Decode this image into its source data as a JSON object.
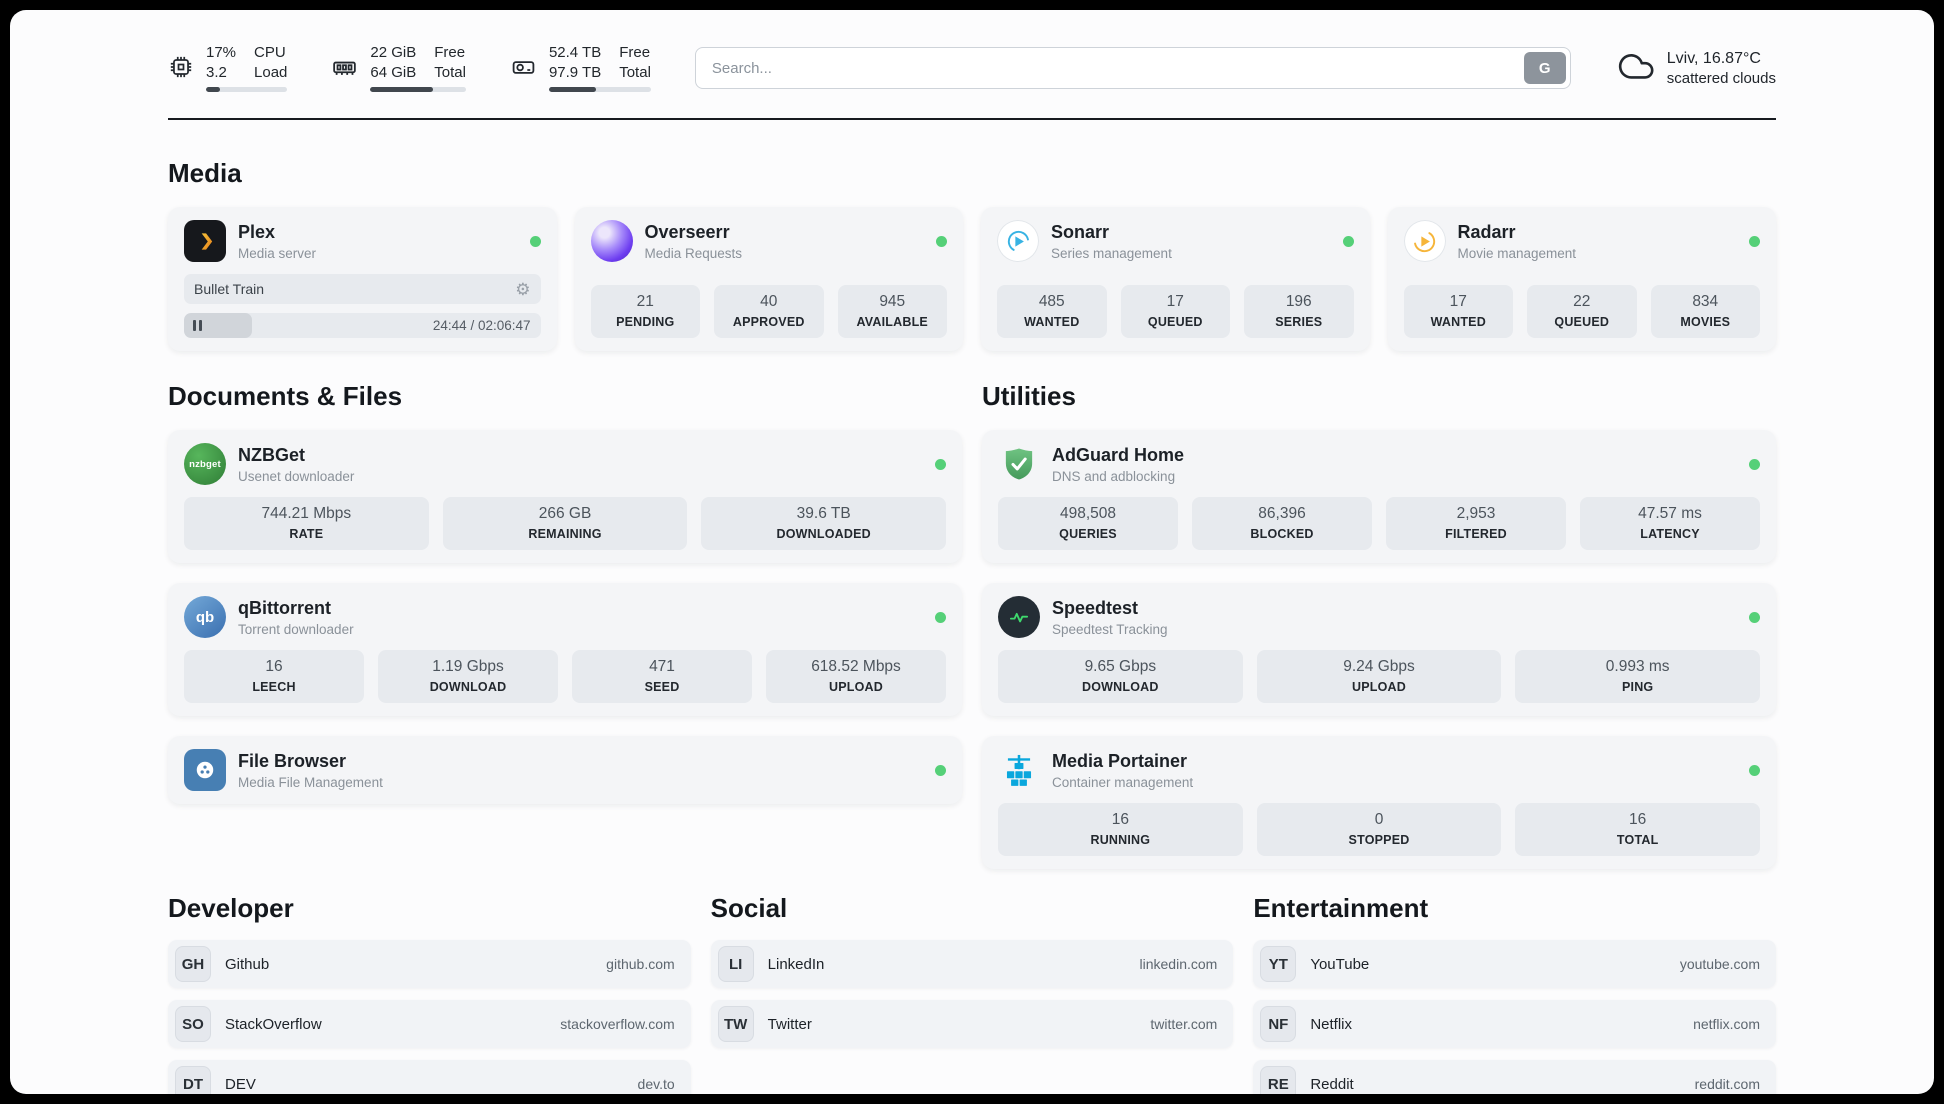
{
  "colors": {
    "status_online": "#55d078",
    "usage_bar_fill": "#41474e",
    "plex_accent": "#eba21a",
    "sonarr_accent": "#38b3e3",
    "radarr_accent": "#f6b53a",
    "adguard_green": "#57a863",
    "portainer_blue": "#0aa7dd",
    "speedtest_pulse": "#3fd96d"
  },
  "topbar": {
    "stats": [
      {
        "icon": "cpu-icon",
        "values": [
          "17%",
          "3.2"
        ],
        "labels": [
          "CPU",
          "Load"
        ],
        "used_percent": 17
      },
      {
        "icon": "ram-icon",
        "values": [
          "22 GiB",
          "64 GiB"
        ],
        "labels": [
          "Free",
          "Total"
        ],
        "used_percent": 66
      },
      {
        "icon": "disk-icon",
        "values": [
          "52.4 TB",
          "97.9 TB"
        ],
        "labels": [
          "Free",
          "Total"
        ],
        "used_percent": 46
      }
    ],
    "search": {
      "placeholder": "Search...",
      "button_label": "G"
    },
    "weather": {
      "location": "Lviv, 16.87°C",
      "condition": "scattered clouds"
    }
  },
  "sections": {
    "media": {
      "title": "Media",
      "cards": [
        {
          "name": "Plex",
          "subtitle": "Media server",
          "status": "online",
          "player": {
            "title": "Bullet Train",
            "time": "24:44 / 02:06:47",
            "progress_percent": 19
          }
        },
        {
          "name": "Overseerr",
          "subtitle": "Media Requests",
          "status": "online",
          "stats": [
            {
              "value": "21",
              "label": "PENDING"
            },
            {
              "value": "40",
              "label": "APPROVED"
            },
            {
              "value": "945",
              "label": "AVAILABLE"
            }
          ]
        },
        {
          "name": "Sonarr",
          "subtitle": "Series management",
          "status": "online",
          "stats": [
            {
              "value": "485",
              "label": "WANTED"
            },
            {
              "value": "17",
              "label": "QUEUED"
            },
            {
              "value": "196",
              "label": "SERIES"
            }
          ]
        },
        {
          "name": "Radarr",
          "subtitle": "Movie management",
          "status": "online",
          "stats": [
            {
              "value": "17",
              "label": "WANTED"
            },
            {
              "value": "22",
              "label": "QUEUED"
            },
            {
              "value": "834",
              "label": "MOVIES"
            }
          ]
        }
      ]
    },
    "documents": {
      "title": "Documents & Files",
      "cards": [
        {
          "name": "NZBGet",
          "subtitle": "Usenet downloader",
          "status": "online",
          "icon_text": "nzbget",
          "stats": [
            {
              "value": "744.21 Mbps",
              "label": "RATE"
            },
            {
              "value": "266 GB",
              "label": "REMAINING"
            },
            {
              "value": "39.6 TB",
              "label": "DOWNLOADED"
            }
          ]
        },
        {
          "name": "qBittorrent",
          "subtitle": "Torrent downloader",
          "status": "online",
          "icon_text": "qb",
          "stats": [
            {
              "value": "16",
              "label": "LEECH"
            },
            {
              "value": "1.19 Gbps",
              "label": "DOWNLOAD"
            },
            {
              "value": "471",
              "label": "SEED"
            },
            {
              "value": "618.52 Mbps",
              "label": "UPLOAD"
            }
          ]
        },
        {
          "name": "File Browser",
          "subtitle": "Media File Management",
          "status": "online",
          "stats": []
        }
      ]
    },
    "utilities": {
      "title": "Utilities",
      "cards": [
        {
          "name": "AdGuard Home",
          "subtitle": "DNS and adblocking",
          "status": "online",
          "stats": [
            {
              "value": "498,508",
              "label": "QUERIES"
            },
            {
              "value": "86,396",
              "label": "BLOCKED"
            },
            {
              "value": "2,953",
              "label": "FILTERED"
            },
            {
              "value": "47.57 ms",
              "label": "LATENCY"
            }
          ]
        },
        {
          "name": "Speedtest",
          "subtitle": "Speedtest Tracking",
          "status": "online",
          "stats": [
            {
              "value": "9.65 Gbps",
              "label": "DOWNLOAD"
            },
            {
              "value": "9.24 Gbps",
              "label": "UPLOAD"
            },
            {
              "value": "0.993 ms",
              "label": "PING"
            }
          ]
        },
        {
          "name": "Media Portainer",
          "subtitle": "Container management",
          "status": "online",
          "stats": [
            {
              "value": "16",
              "label": "RUNNING"
            },
            {
              "value": "0",
              "label": "STOPPED"
            },
            {
              "value": "16",
              "label": "TOTAL"
            }
          ]
        }
      ]
    },
    "bookmarks": [
      {
        "title": "Developer",
        "items": [
          {
            "abbr": "GH",
            "name": "Github",
            "url": "github.com"
          },
          {
            "abbr": "SO",
            "name": "StackOverflow",
            "url": "stackoverflow.com"
          },
          {
            "abbr": "DT",
            "name": "DEV",
            "url": "dev.to"
          }
        ]
      },
      {
        "title": "Social",
        "items": [
          {
            "abbr": "LI",
            "name": "LinkedIn",
            "url": "linkedin.com"
          },
          {
            "abbr": "TW",
            "name": "Twitter",
            "url": "twitter.com"
          }
        ]
      },
      {
        "title": "Entertainment",
        "items": [
          {
            "abbr": "YT",
            "name": "YouTube",
            "url": "youtube.com"
          },
          {
            "abbr": "NF",
            "name": "Netflix",
            "url": "netflix.com"
          },
          {
            "abbr": "RE",
            "name": "Reddit",
            "url": "reddit.com"
          }
        ]
      }
    ]
  }
}
